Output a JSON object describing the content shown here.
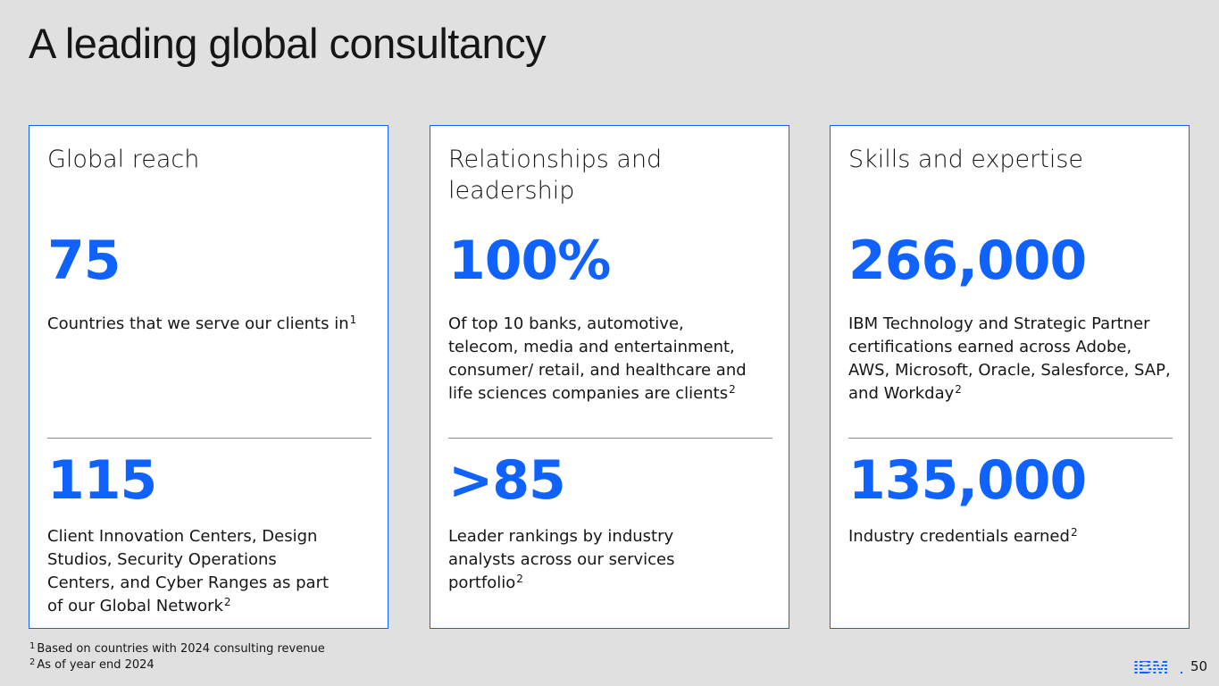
{
  "slide": {
    "title": "A leading global consultancy",
    "page_number": "50",
    "logo_text": "IBM"
  },
  "brand": {
    "accent_color": "#0f62fe",
    "background_color": "#e0e0e0"
  },
  "cards": [
    {
      "heading": "Global reach",
      "stat_top": "75",
      "desc_top": "Countries that we serve our clients in",
      "desc_top_note": "1",
      "stat_bottom": "115",
      "desc_bottom": "Client Innovation Centers, Design Studios, Security Operations Centers, and Cyber Ranges as part of our Global Network",
      "desc_bottom_note": "2"
    },
    {
      "heading": "Relationships and leadership",
      "stat_top": "100%",
      "desc_top": "Of top 10 banks, automotive, telecom, media and entertainment, consumer/ retail, and healthcare and life sciences companies are clients",
      "desc_top_note": "2",
      "stat_bottom": ">85",
      "desc_bottom": "Leader rankings by industry analysts across our services portfolio",
      "desc_bottom_note": "2"
    },
    {
      "heading": "Skills and expertise",
      "stat_top": "266,000",
      "desc_top": "IBM Technology and Strategic Partner certifications earned across Adobe, AWS, Microsoft, Oracle, Salesforce, SAP, and Workday",
      "desc_top_note": "2",
      "stat_bottom": "135,000",
      "desc_bottom": "Industry credentials earned",
      "desc_bottom_note": "2"
    }
  ],
  "footnotes": [
    {
      "marker": "1",
      "text": "Based on countries with 2024 consulting revenue"
    },
    {
      "marker": "2",
      "text": "As of year end 2024"
    }
  ]
}
